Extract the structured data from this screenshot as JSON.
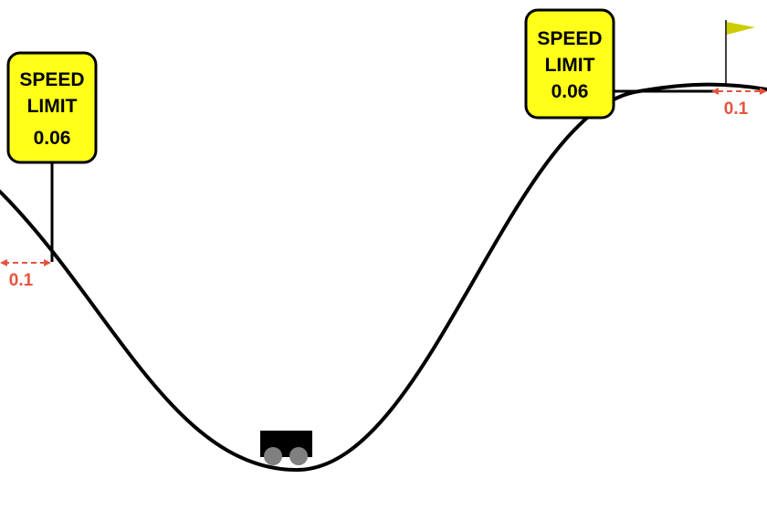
{
  "colors": {
    "background": "#ffffff",
    "track": "#000000",
    "sign_fill": "#ffff1a",
    "sign_border": "#000000",
    "marker": "#e8533f",
    "flag": "#cccc00",
    "car_body": "#000000",
    "wheel": "#808080"
  },
  "left_sign": {
    "line1": "SPEED",
    "line2": "LIMIT",
    "value": "0.06",
    "marker_label": "0.1"
  },
  "right_sign": {
    "line1": "SPEED",
    "line2": "LIMIT",
    "value": "0.06",
    "marker_label": "0.1"
  },
  "goal": {
    "icon": "goal-flag-icon"
  },
  "car": {
    "icon": "car-icon"
  }
}
